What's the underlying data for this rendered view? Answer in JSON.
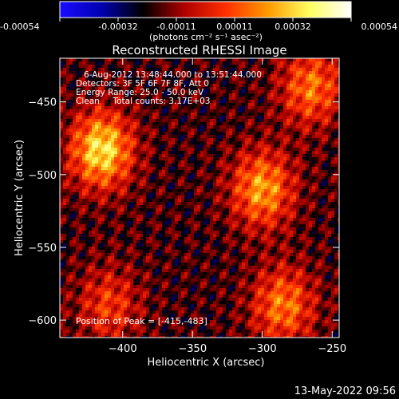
{
  "colorbar": {
    "ticks": [
      "-0.00054",
      "-0.00032",
      "-0.00011",
      "0.00011",
      "0.00032",
      "0.00054"
    ],
    "unit_label": "(photons cm⁻² s⁻¹ asec⁻²)",
    "colors": [
      "#1b0bff",
      "#0000b0",
      "#000000",
      "#b00000",
      "#ff3000",
      "#ff9a00",
      "#ffff60",
      "#ffffff"
    ]
  },
  "chart_data": {
    "type": "heatmap",
    "title": "Reconstructed RHESSI Image",
    "xlabel": "Heliocentric X (arcsec)",
    "ylabel": "Heliocentric Y (arcsec)",
    "xlim": [
      -445,
      -245
    ],
    "ylim": [
      -612,
      -420
    ],
    "x_ticks": [
      -400,
      -350,
      -300,
      -250
    ],
    "y_ticks": [
      -450,
      -500,
      -550,
      -600
    ],
    "clim": [
      -0.00054,
      0.00054
    ],
    "peak": [
      -415,
      -483
    ],
    "sources": [
      {
        "x": -415,
        "y": -483,
        "peak": 0.00054
      },
      {
        "x": -300,
        "y": -510,
        "peak": 0.00042
      },
      {
        "x": -285,
        "y": -590,
        "peak": 0.00036
      },
      {
        "x": -265,
        "y": -440,
        "peak": 0.00035
      },
      {
        "x": -410,
        "y": -590,
        "peak": 0.00025
      }
    ],
    "annotations": [
      "6-Aug-2012 13:48:44.000 to 13:51:44.000",
      "Detectors: 3F 5F 6F 7F 8F, Att 0",
      "Energy Range: 25.0 - 50.0 keV",
      "Clean     Total counts: 3.17E+03"
    ],
    "peak_label": "Position of Peak = [-415,-483]"
  },
  "footer": {
    "timestamp": "13-May-2022 09:56"
  }
}
